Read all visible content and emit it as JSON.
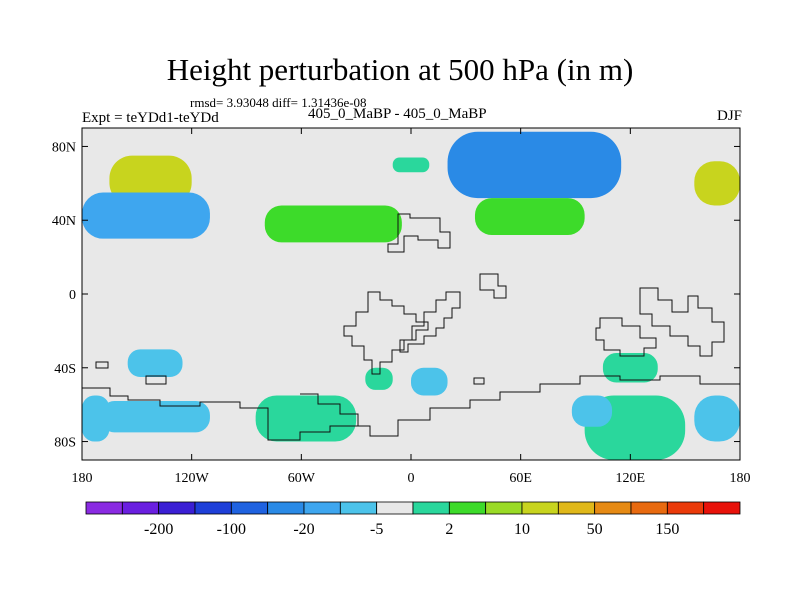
{
  "chart_data": {
    "type": "heatmap",
    "title": "Height perturbation at 500 hPa (in m)",
    "subtitle": "rmsd= 3.93048 diff= 1.31436e-08",
    "left_label": "Expt = teYDd1-teYDd",
    "center_label": "405_0_MaBP - 405_0_MaBP",
    "right_label": "DJF",
    "x_range": [
      -180,
      180
    ],
    "y_range": [
      -90,
      90
    ],
    "x_ticks": [
      {
        "value": -180,
        "label": "180"
      },
      {
        "value": -120,
        "label": "120W"
      },
      {
        "value": -60,
        "label": "60W"
      },
      {
        "value": 0,
        "label": "0"
      },
      {
        "value": 60,
        "label": "60E"
      },
      {
        "value": 120,
        "label": "120E"
      },
      {
        "value": 180,
        "label": "180"
      }
    ],
    "y_ticks": [
      {
        "value": 80,
        "label": "80N"
      },
      {
        "value": 40,
        "label": "40N"
      },
      {
        "value": 0,
        "label": "0"
      },
      {
        "value": -40,
        "label": "40S"
      },
      {
        "value": -80,
        "label": "80S"
      }
    ],
    "colorbar": {
      "colors": [
        "#8a2be2",
        "#6a1fe0",
        "#3b1fd4",
        "#1e3fd8",
        "#1f62e0",
        "#2a8ae6",
        "#3ea6ef",
        "#4cc3ea",
        "#e8e8e8",
        "#2ad79c",
        "#3ddb2a",
        "#9adb26",
        "#c8d41e",
        "#e0b81a",
        "#e68a14",
        "#e86a10",
        "#ea3a0a",
        "#e8120a"
      ],
      "labels": [
        {
          "after_index": 1,
          "label": "-200"
        },
        {
          "after_index": 3,
          "label": "-100"
        },
        {
          "after_index": 5,
          "label": "-20"
        },
        {
          "after_index": 7,
          "label": "-5"
        },
        {
          "after_index": 9,
          "label": "2"
        },
        {
          "after_index": 11,
          "label": "10"
        },
        {
          "after_index": 13,
          "label": "50"
        },
        {
          "after_index": 15,
          "label": "150"
        }
      ]
    },
    "regions": [
      {
        "level": 8,
        "lon": [
          -180,
          180
        ],
        "lat": [
          -90,
          90
        ],
        "note": "background near zero"
      },
      {
        "level": 12,
        "lon": [
          -165,
          -120
        ],
        "lat": [
          48,
          75
        ]
      },
      {
        "level": 12,
        "lon": [
          155,
          180
        ],
        "lat": [
          48,
          72
        ]
      },
      {
        "level": 5,
        "lon": [
          20,
          115
        ],
        "lat": [
          52,
          88
        ]
      },
      {
        "level": 6,
        "lon": [
          -180,
          -110
        ],
        "lat": [
          30,
          55
        ]
      },
      {
        "level": 10,
        "lon": [
          -80,
          -5
        ],
        "lat": [
          28,
          48
        ]
      },
      {
        "level": 10,
        "lon": [
          35,
          95
        ],
        "lat": [
          32,
          52
        ]
      },
      {
        "level": 9,
        "lon": [
          -10,
          10
        ],
        "lat": [
          66,
          74
        ]
      },
      {
        "level": 9,
        "lon": [
          -85,
          -30
        ],
        "lat": [
          -80,
          -55
        ]
      },
      {
        "level": 9,
        "lon": [
          95,
          150
        ],
        "lat": [
          -90,
          -55
        ]
      },
      {
        "level": 9,
        "lon": [
          105,
          135
        ],
        "lat": [
          -48,
          -32
        ]
      },
      {
        "level": 9,
        "lon": [
          -25,
          -10
        ],
        "lat": [
          -52,
          -40
        ]
      },
      {
        "level": 7,
        "lon": [
          -155,
          -125
        ],
        "lat": [
          -45,
          -30
        ]
      },
      {
        "level": 7,
        "lon": [
          -170,
          -110
        ],
        "lat": [
          -75,
          -58
        ]
      },
      {
        "level": 7,
        "lon": [
          0,
          20
        ],
        "lat": [
          -55,
          -40
        ]
      },
      {
        "level": 7,
        "lon": [
          88,
          110
        ],
        "lat": [
          -72,
          -55
        ]
      },
      {
        "level": 7,
        "lon": [
          155,
          180
        ],
        "lat": [
          -80,
          -55
        ]
      },
      {
        "level": 7,
        "lon": [
          -180,
          -165
        ],
        "lat": [
          -80,
          -55
        ]
      }
    ]
  }
}
